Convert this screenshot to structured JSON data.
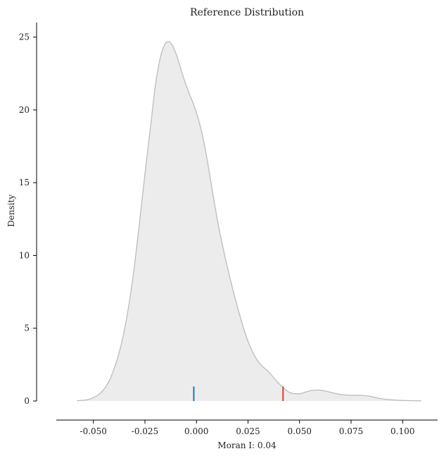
{
  "chart_data": {
    "type": "area",
    "title": "Reference Distribution",
    "xlabel": "Moran I: 0.04",
    "ylabel": "Density",
    "xlim": [
      -0.068,
      0.117
    ],
    "ylim": [
      0,
      26
    ],
    "x_ticks": [
      -0.05,
      -0.025,
      0.0,
      0.025,
      0.05,
      0.075,
      0.1
    ],
    "x_tick_labels": [
      "-0.050",
      "-0.025",
      "0.000",
      "0.025",
      "0.050",
      "0.075",
      "0.100"
    ],
    "y_ticks": [
      0,
      5,
      10,
      15,
      20,
      25
    ],
    "y_tick_labels": [
      "0",
      "5",
      "10",
      "15",
      "20",
      "25"
    ],
    "grid": false,
    "series": [
      {
        "x": [
          -0.058,
          -0.052,
          -0.047,
          -0.043,
          -0.04,
          -0.037,
          -0.034,
          -0.031,
          -0.028,
          -0.025,
          -0.022,
          -0.02,
          -0.018,
          -0.016,
          -0.014,
          -0.012,
          -0.01,
          -0.008,
          -0.006,
          -0.004,
          -0.002,
          0.0,
          0.002,
          0.004,
          0.006,
          0.008,
          0.011,
          0.015,
          0.02,
          0.025,
          0.03,
          0.035,
          0.04,
          0.045,
          0.05,
          0.055,
          0.06,
          0.065,
          0.07,
          0.075,
          0.08,
          0.085,
          0.09,
          0.095,
          0.1,
          0.109
        ],
        "y": [
          0.02,
          0.12,
          0.5,
          1.2,
          2.2,
          3.6,
          5.6,
          8.3,
          11.8,
          15.6,
          19.2,
          21.6,
          23.3,
          24.3,
          24.7,
          24.5,
          23.9,
          23.0,
          22.1,
          21.3,
          20.6,
          19.8,
          18.8,
          17.5,
          15.9,
          14.2,
          11.8,
          9.2,
          6.4,
          4.1,
          2.7,
          2.0,
          1.2,
          0.6,
          0.5,
          0.7,
          0.75,
          0.6,
          0.45,
          0.4,
          0.4,
          0.3,
          0.15,
          0.08,
          0.04,
          0.01
        ]
      }
    ],
    "markers": [
      {
        "x": -0.0013,
        "height": 1.0,
        "color": "#1f77b4"
      },
      {
        "x": 0.042,
        "height": 1.0,
        "color": "#d9432f"
      }
    ],
    "colors": {
      "fill": "#ececec",
      "line": "#bcbcbc",
      "axis": "#000000"
    }
  }
}
